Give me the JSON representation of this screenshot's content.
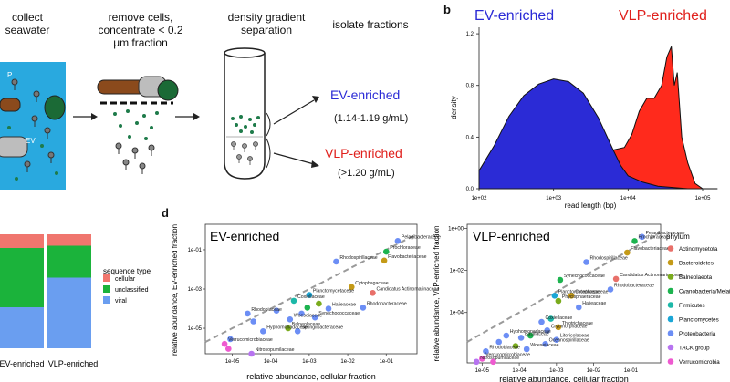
{
  "panel_a": {
    "steps": {
      "collect": "collect seawater",
      "remove": "remove cells, concentrate < 0.2 μm fraction",
      "density": "density gradient separation",
      "isolate": "isolate fractions"
    },
    "ev_label": "EV",
    "ev_fraction": {
      "name": "EV-enriched",
      "density": "(1.14-1.19 g/mL)"
    },
    "vlp_fraction": {
      "name": "VLP-enriched",
      "density": "(>1.20 g/mL)"
    },
    "colors": {
      "ev": "#2b2bd6",
      "vlp": "#e0201c",
      "sea": "#29a9df"
    }
  },
  "panel_b": {
    "letter": "b",
    "chart_data": {
      "type": "area",
      "xlabel": "read length (bp)",
      "ylabel": "density",
      "xscale": "log10",
      "xlim": [
        100,
        100000
      ],
      "ylim": [
        0,
        1.25
      ],
      "xticks": [
        "1e+02",
        "1e+03",
        "1e+04",
        "1e+05"
      ],
      "yticks": [
        "0.0",
        "0.4",
        "0.8",
        "1.2"
      ],
      "series": [
        {
          "name": "EV-enriched",
          "color": "#2b2bd6",
          "log10x": [
            1.5,
            1.8,
            2.0,
            2.2,
            2.4,
            2.6,
            2.8,
            3.0,
            3.2,
            3.4,
            3.6,
            3.8,
            3.9,
            4.0,
            4.2,
            4.4,
            4.6,
            4.8,
            5.0,
            5.2
          ],
          "y": [
            0,
            0.05,
            0.14,
            0.33,
            0.56,
            0.72,
            0.81,
            0.85,
            0.83,
            0.74,
            0.55,
            0.3,
            0.18,
            0.1,
            0.05,
            0.02,
            0.01,
            0,
            0,
            0
          ]
        },
        {
          "name": "VLP-enriched",
          "color": "#ff2a1c",
          "log10x": [
            2.0,
            2.4,
            2.7,
            3.0,
            3.2,
            3.4,
            3.6,
            3.8,
            3.95,
            4.05,
            4.15,
            4.25,
            4.35,
            4.45,
            4.52,
            4.58,
            4.62,
            4.66,
            4.72,
            4.8,
            4.9,
            5.0
          ],
          "y": [
            0,
            0.04,
            0.17,
            0.28,
            0.32,
            0.3,
            0.33,
            0.3,
            0.32,
            0.42,
            0.6,
            0.7,
            0.7,
            0.8,
            1.02,
            1.1,
            0.8,
            0.9,
            0.4,
            0.2,
            0.04,
            0
          ]
        }
      ]
    }
  },
  "panel_c": {
    "categories": [
      "EV-enriched",
      "VLP-enriched"
    ],
    "legend_title": "sequence type",
    "chart_data": {
      "type": "bar",
      "stacked": true,
      "categories": [
        "EV-enriched",
        "VLP-enriched"
      ],
      "ylim": [
        0,
        1
      ],
      "series": [
        {
          "name": "cellular",
          "color": "#f0766e",
          "values": [
            0.12,
            0.1
          ]
        },
        {
          "name": "unclassified",
          "color": "#1bb33b",
          "values": [
            0.52,
            0.28
          ]
        },
        {
          "name": "viral",
          "color": "#6a9ef0",
          "values": [
            0.36,
            0.62
          ]
        }
      ]
    }
  },
  "panel_d": {
    "letter": "d",
    "legend_title": "phylum",
    "phyla": [
      {
        "name": "Actinomycetota",
        "color": "#e8706a"
      },
      {
        "name": "Bacteroidetes",
        "color": "#c49a17"
      },
      {
        "name": "Balneolaeota",
        "color": "#7aab1c"
      },
      {
        "name": "Cyanobacteria/Melainabacteria",
        "color": "#1db34f"
      },
      {
        "name": "Firmicutes",
        "color": "#1cb8a8"
      },
      {
        "name": "Planctomycetes",
        "color": "#1aa6d6"
      },
      {
        "name": "Proteobacteria",
        "color": "#6c8ef5"
      },
      {
        "name": "TACK group",
        "color": "#b774f0"
      },
      {
        "name": "Verrucomicrobia",
        "color": "#ee5ad0"
      }
    ],
    "ev_plot": {
      "title": "EV-enriched",
      "xlabel": "relative abundance, cellular fraction",
      "ylabel": "relative abundance, EV-enriched fraction",
      "xticks": [
        "1e-05",
        "1e-04",
        "1e-03",
        "1e-02",
        "1e-01"
      ],
      "yticks": [
        "1e-05",
        "1e-03",
        "1e-01"
      ],
      "chart_data": {
        "type": "scatter",
        "xscale": "log10",
        "yscale": "log10",
        "xlim": [
          -5.7,
          -0.2
        ],
        "ylim": [
          -6.3,
          0.3
        ],
        "points": [
          {
            "x": -0.7,
            "y": -0.55,
            "phylum": "Proteobacteria",
            "label": "Pelagibacteraceae"
          },
          {
            "x": -1.0,
            "y": -1.1,
            "phylum": "Cyanobacteria/Melainabacteria",
            "label": "Prochloraceae"
          },
          {
            "x": -1.05,
            "y": -1.55,
            "phylum": "Bacteroidetes",
            "label": "Flavobacteriaceae"
          },
          {
            "x": -2.3,
            "y": -1.6,
            "phylum": "Proteobacteria",
            "label": "Rhodospirillaceae"
          },
          {
            "x": -1.9,
            "y": -2.9,
            "phylum": "Bacteroidetes",
            "label": "Cytophagaceae"
          },
          {
            "x": -1.35,
            "y": -3.2,
            "phylum": "Actinomycetota",
            "label": "Candidatus Actinomarinaceae"
          },
          {
            "x": -1.6,
            "y": -3.95,
            "phylum": "Proteobacteria",
            "label": "Rhodobacteraceae"
          },
          {
            "x": -3.0,
            "y": -3.3,
            "phylum": "Planctomycetes",
            "label": "Planctomycetaceae"
          },
          {
            "x": -2.5,
            "y": -4.0,
            "phylum": "Proteobacteria",
            "label": "Halieaceae"
          },
          {
            "x": -3.4,
            "y": -3.6,
            "phylum": "Firmicutes",
            "label": "Coxiellaceae"
          },
          {
            "x": -3.05,
            "y": -3.95,
            "phylum": "Cyanobacteria/Melainabacteria",
            "label": ""
          },
          {
            "x": -2.85,
            "y": -4.45,
            "phylum": "Proteobacteria",
            "label": "Synechococcaceae"
          },
          {
            "x": -2.75,
            "y": -3.75,
            "phylum": "Balneolaeota",
            "label": ""
          },
          {
            "x": -3.2,
            "y": -4.25,
            "phylum": "Proteobacteria",
            "label": ""
          },
          {
            "x": -3.5,
            "y": -4.55,
            "phylum": "Proteobacteria",
            "label": "Woeseiaceae"
          },
          {
            "x": -3.85,
            "y": -4.1,
            "phylum": "Proteobacteria",
            "label": ""
          },
          {
            "x": -3.55,
            "y": -5.0,
            "phylum": "Balneolaeota",
            "label": "Balneolaceae"
          },
          {
            "x": -3.3,
            "y": -5.15,
            "phylum": "Proteobacteria",
            "label": "Spongiibacteraceae"
          },
          {
            "x": -4.6,
            "y": -4.25,
            "phylum": "Proteobacteria",
            "label": "Rhodobiaceae"
          },
          {
            "x": -4.45,
            "y": -4.65,
            "phylum": "Proteobacteria",
            "label": ""
          },
          {
            "x": -4.2,
            "y": -5.15,
            "phylum": "Proteobacteria",
            "label": "Hyphomonadaceae"
          },
          {
            "x": -5.05,
            "y": -5.55,
            "phylum": "Proteobacteria",
            "label": ""
          },
          {
            "x": -5.2,
            "y": -5.8,
            "phylum": "Verrucomicrobia",
            "label": "Verrucomicrobiaceae"
          },
          {
            "x": -5.1,
            "y": -6.05,
            "phylum": "Verrucomicrobia",
            "label": ""
          },
          {
            "x": -4.5,
            "y": -6.3,
            "phylum": "TACK group",
            "label": "Nitrosopumilaceae"
          }
        ]
      }
    },
    "vlp_plot": {
      "title": "VLP-enriched",
      "xlabel": "relative abundance, cellular fraction",
      "ylabel": "relative abundance, VLP-enriched fraction",
      "xticks": [
        "1e-05",
        "1e-04",
        "1e-03",
        "1e-02",
        "1e-01"
      ],
      "yticks": [
        "1e-04",
        "1e-02",
        "1e+00"
      ],
      "chart_data": {
        "type": "scatter",
        "xscale": "log10",
        "yscale": "log10",
        "xlim": [
          -5.4,
          -0.2
        ],
        "ylim": [
          -6.4,
          0.2
        ],
        "points": [
          {
            "x": -0.7,
            "y": -0.4,
            "phylum": "Proteobacteria",
            "label": "Pelagibacteraceae"
          },
          {
            "x": -0.9,
            "y": -0.6,
            "phylum": "Cyanobacteria/Melainabacteria",
            "label": "Prochloraceae"
          },
          {
            "x": -1.1,
            "y": -1.15,
            "phylum": "Bacteroidetes",
            "label": "Flavobacteriaceae"
          },
          {
            "x": -2.2,
            "y": -1.6,
            "phylum": "Proteobacteria",
            "label": "Rhodospirillaceae"
          },
          {
            "x": -1.4,
            "y": -2.4,
            "phylum": "Actinomycetota",
            "label": "Candidatus Actinomarinaceae"
          },
          {
            "x": -1.55,
            "y": -2.9,
            "phylum": "Proteobacteria",
            "label": "Rhodobacteraceae"
          },
          {
            "x": -2.9,
            "y": -2.45,
            "phylum": "Cyanobacteria/Melainabacteria",
            "label": "Synechococcaceae"
          },
          {
            "x": -2.6,
            "y": -3.2,
            "phylum": "Bacteroidetes",
            "label": "Cytophagaceae"
          },
          {
            "x": -3.05,
            "y": -3.2,
            "phylum": "Planctomycetes",
            "label": "Planctomycetaceae"
          },
          {
            "x": -2.95,
            "y": -3.45,
            "phylum": "Balneolaeota",
            "label": "Phycisphaeraceae"
          },
          {
            "x": -2.4,
            "y": -3.75,
            "phylum": "Proteobacteria",
            "label": "Halieaceae"
          },
          {
            "x": -3.15,
            "y": -4.3,
            "phylum": "Firmicutes",
            "label": ""
          },
          {
            "x": -3.4,
            "y": -4.45,
            "phylum": "Proteobacteria",
            "label": "Coxiellaceae"
          },
          {
            "x": -2.95,
            "y": -4.7,
            "phylum": "Bacteroidetes",
            "label": "Thiotrichaceae"
          },
          {
            "x": -3.25,
            "y": -4.85,
            "phylum": "Proteobacteria",
            "label": "Cryomorphaceae"
          },
          {
            "x": -3.7,
            "y": -5.1,
            "phylum": "Cyanobacteria/Melainabacteria",
            "label": ""
          },
          {
            "x": -3.95,
            "y": -5.2,
            "phylum": "Proteobacteria",
            "label": "Bacillaceae"
          },
          {
            "x": -4.35,
            "y": -5.1,
            "phylum": "Proteobacteria",
            "label": "Hyphomonadaceae"
          },
          {
            "x": -4.55,
            "y": -5.4,
            "phylum": "Proteobacteria",
            "label": ""
          },
          {
            "x": -3.0,
            "y": -5.3,
            "phylum": "Proteobacteria",
            "label": "Litoricolaceae"
          },
          {
            "x": -3.3,
            "y": -5.5,
            "phylum": "Proteobacteria",
            "label": "Oceanospirillaceae"
          },
          {
            "x": -3.8,
            "y": -5.75,
            "phylum": "Proteobacteria",
            "label": "Woeseiaceae"
          },
          {
            "x": -4.1,
            "y": -5.6,
            "phylum": "Balneolaeota",
            "label": ""
          },
          {
            "x": -4.9,
            "y": -5.85,
            "phylum": "Proteobacteria",
            "label": "Rhodobiaceae"
          },
          {
            "x": -5.0,
            "y": -6.2,
            "phylum": "Verrucomicrobia",
            "label": "Verrucomicrobiaceae"
          },
          {
            "x": -5.15,
            "y": -6.35,
            "phylum": "TACK group",
            "label": "Nitrosopumilaceae"
          },
          {
            "x": -4.7,
            "y": -6.35,
            "phylum": "Verrucomicrobia",
            "label": ""
          }
        ]
      }
    }
  }
}
